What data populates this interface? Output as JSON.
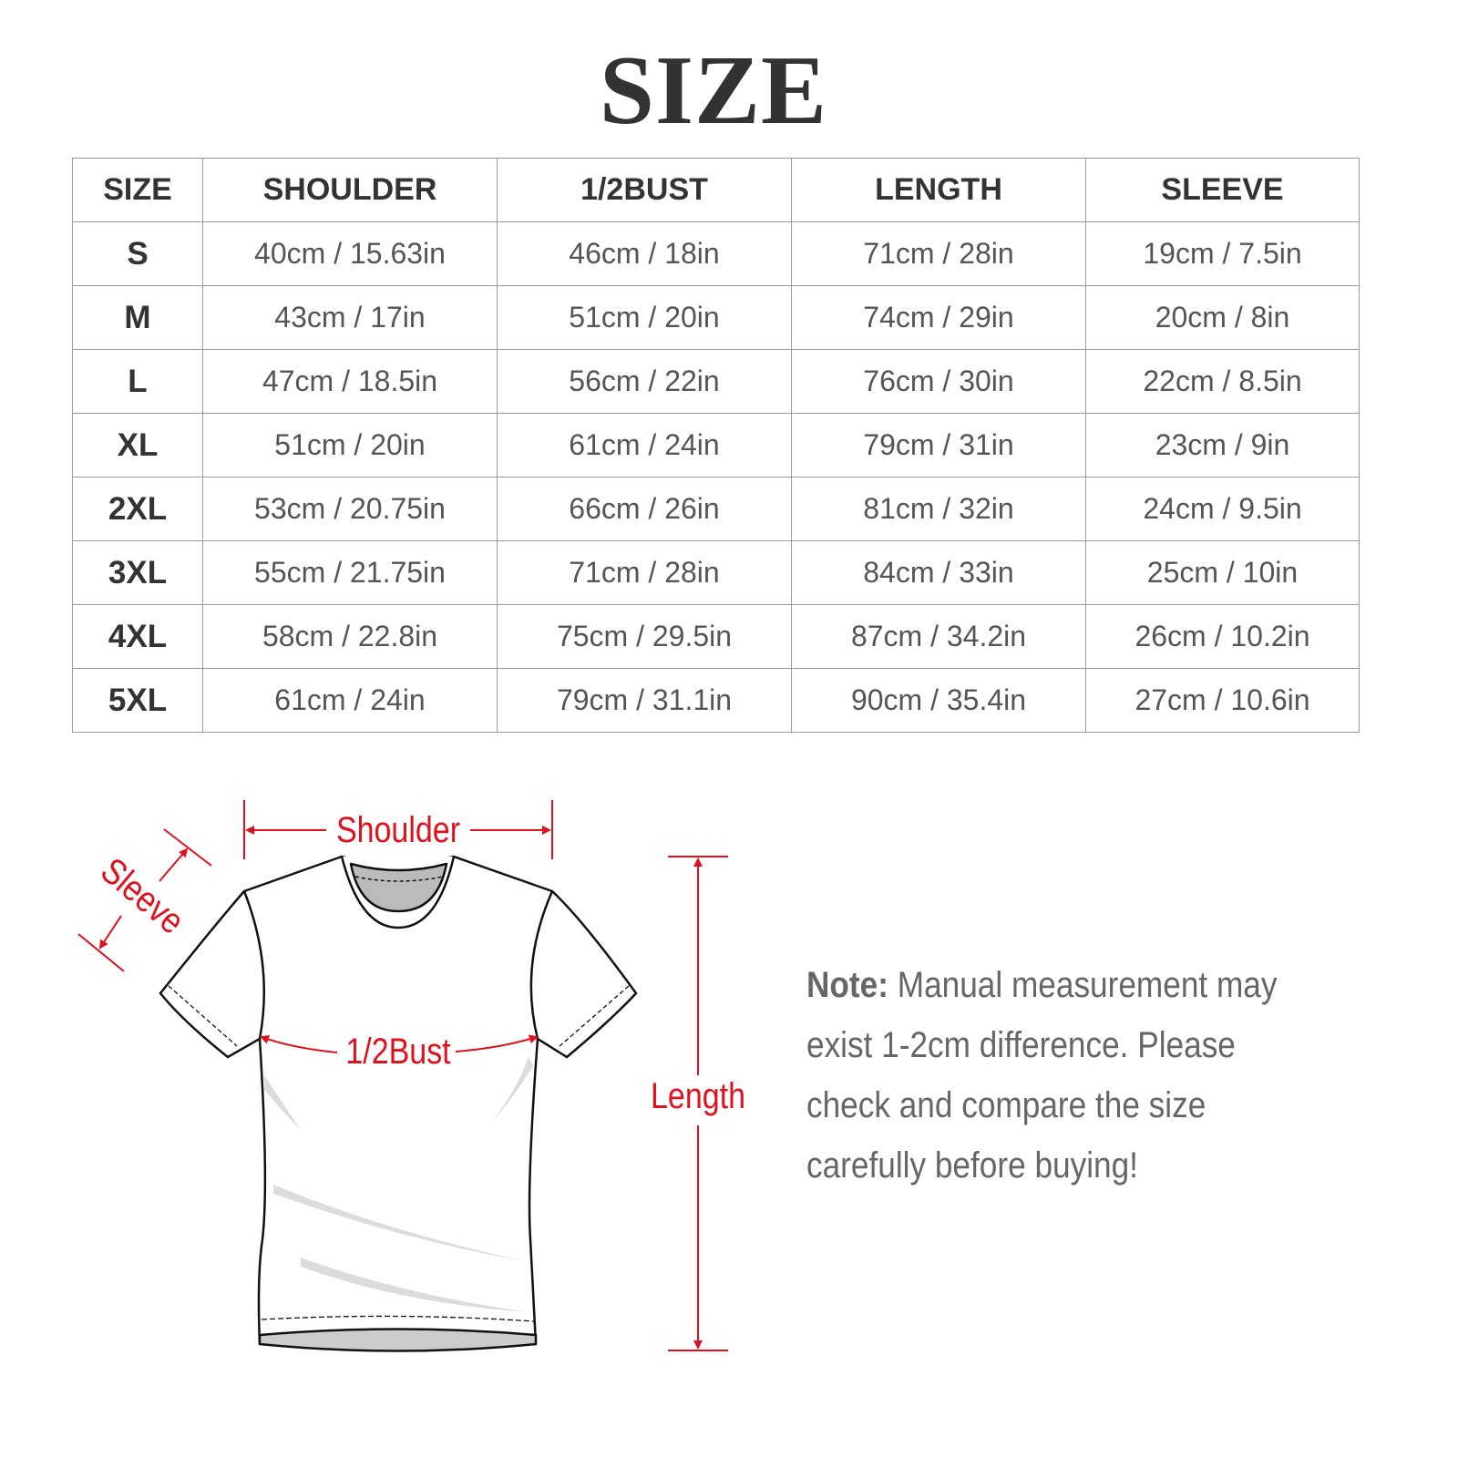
{
  "title": "SIZE",
  "table": {
    "headers": [
      "SIZE",
      "SHOULDER",
      "1/2BUST",
      "LENGTH",
      "SLEEVE"
    ],
    "rows": [
      [
        "S",
        "40cm / 15.63in",
        "46cm / 18in",
        "71cm / 28in",
        "19cm / 7.5in"
      ],
      [
        "M",
        "43cm / 17in",
        "51cm / 20in",
        "74cm / 29in",
        "20cm / 8in"
      ],
      [
        "L",
        "47cm / 18.5in",
        "56cm / 22in",
        "76cm / 30in",
        "22cm / 8.5in"
      ],
      [
        "XL",
        "51cm / 20in",
        "61cm / 24in",
        "79cm / 31in",
        "23cm / 9in"
      ],
      [
        "2XL",
        "53cm / 20.75in",
        "66cm / 26in",
        "81cm / 32in",
        "24cm / 9.5in"
      ],
      [
        "3XL",
        "55cm / 21.75in",
        "71cm / 28in",
        "84cm / 33in",
        "25cm / 10in"
      ],
      [
        "4XL",
        "58cm / 22.8in",
        "75cm / 29.5in",
        "87cm / 34.2in",
        "26cm / 10.2in"
      ],
      [
        "5XL",
        "61cm / 24in",
        "79cm / 31.1in",
        "90cm / 35.4in",
        "27cm / 10.6in"
      ]
    ]
  },
  "diagram": {
    "shoulder_label": "Shoulder",
    "sleeve_label": "Sleeve",
    "bust_label": "1/2Bust",
    "length_label": "Length",
    "accent_color": "#e0101c"
  },
  "note": {
    "label": "Note:",
    "lines": [
      "Manual measurement may",
      "exist 1-2cm difference. Please",
      "check and compare the size",
      "carefully before buying!"
    ]
  }
}
